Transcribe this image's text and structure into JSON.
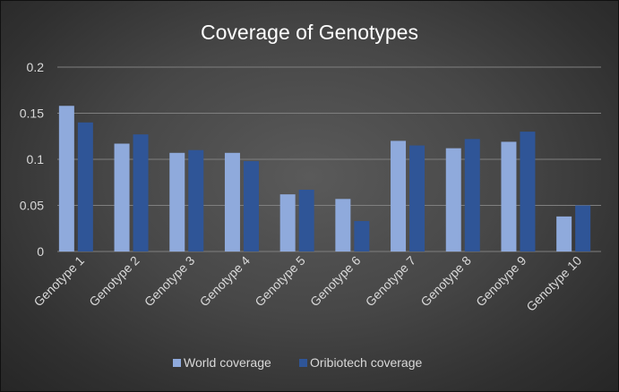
{
  "chart_data": {
    "type": "bar",
    "title": "Coverage of Genotypes",
    "xlabel": "",
    "ylabel": "",
    "categories": [
      "Genotype 1",
      "Genotype 2",
      "Genotype 3",
      "Genotype 4",
      "Genotype 5",
      "Genotype 6",
      "Genotype 7",
      "Genotype 8",
      "Genotype 9",
      "Genotype 10"
    ],
    "series": [
      {
        "name": "World coverage",
        "color": "#8faadc",
        "values": [
          0.158,
          0.117,
          0.107,
          0.107,
          0.062,
          0.057,
          0.12,
          0.112,
          0.119,
          0.038
        ]
      },
      {
        "name": "Oribiotech coverage",
        "color": "#2f5597",
        "values": [
          0.14,
          0.127,
          0.11,
          0.098,
          0.067,
          0.033,
          0.115,
          0.122,
          0.13,
          0.05
        ]
      }
    ],
    "ylim": [
      0,
      0.2
    ],
    "yticks": [
      "0",
      "0.05",
      "0.1",
      "0.15",
      "0.2"
    ],
    "ytick_values": [
      0,
      0.05,
      0.1,
      0.15,
      0.2
    ],
    "grid": true,
    "legend_position": "bottom"
  }
}
